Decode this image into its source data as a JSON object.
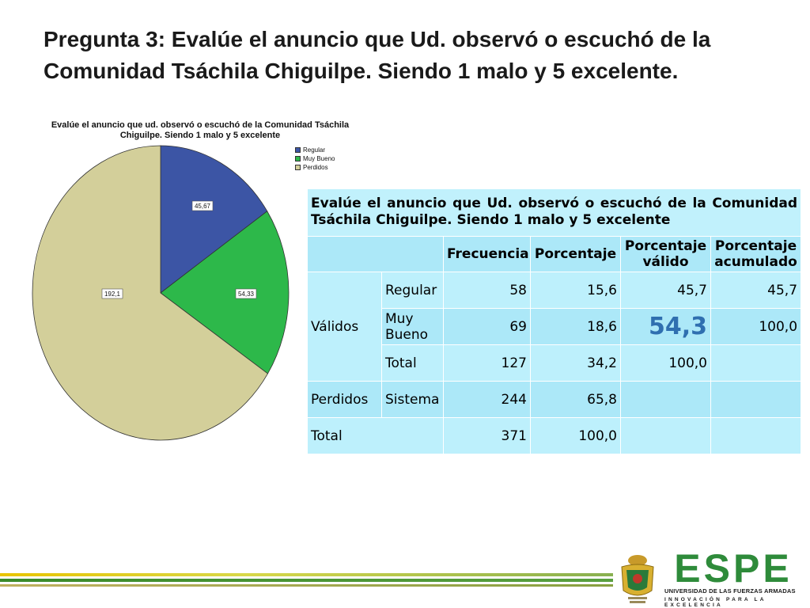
{
  "slide": {
    "title": "Pregunta 3: Evalúe el anuncio que Ud. observó o escuchó de la Comunidad Tsáchila Chiguilpe. Siendo 1 malo y 5 excelente."
  },
  "chart_data": {
    "type": "pie",
    "title_line1": "Evalúe el anuncio que ud. observó o escuchó de la Comunidad Tsáchila",
    "title_line2": "Chiguilpe. Siendo 1 malo y 5 excelente",
    "categories": [
      "Regular",
      "Muy Bueno",
      "Perdidos"
    ],
    "values": [
      45.67,
      54.33,
      192.1
    ],
    "labels": [
      "45,67",
      "54,33",
      "192,1"
    ],
    "colors": [
      "#3c55a5",
      "#2db84a",
      "#d3cf9a"
    ],
    "legend_position": "top-right"
  },
  "table": {
    "caption": "Evalúe el anuncio que Ud. observó o escuchó de la Comunidad Tsáchila Chiguilpe. Siendo 1 malo y 5 excelente",
    "headers": {
      "frecuencia": "Frecuencia",
      "porcentaje": "Porcentaje",
      "porcentaje_valido": "Porcentaje válido",
      "porcentaje_acumulado": "Porcentaje acumulado"
    },
    "groups": {
      "validos": "Válidos",
      "perdidos": "Perdidos",
      "total": "Total"
    },
    "rows": {
      "regular": {
        "label": "Regular",
        "frecuencia": "58",
        "porcentaje": "15,6",
        "valido": "45,7",
        "acumulado": "45,7"
      },
      "muy_bueno": {
        "label": "Muy Bueno",
        "frecuencia": "69",
        "porcentaje": "18,6",
        "valido": "54,3",
        "acumulado": "100,0"
      },
      "total_validos": {
        "label": "Total",
        "frecuencia": "127",
        "porcentaje": "34,2",
        "valido": "100,0",
        "acumulado": ""
      },
      "sistema": {
        "label": "Sistema",
        "frecuencia": "244",
        "porcentaje": "65,8",
        "valido": "",
        "acumulado": ""
      },
      "total": {
        "frecuencia": "371",
        "porcentaje": "100,0",
        "valido": "",
        "acumulado": ""
      }
    }
  },
  "footer": {
    "logo_word": "ESPE",
    "logo_line1": "UNIVERSIDAD DE LAS FUERZAS ARMADAS",
    "logo_line2": "INNOVACIÓN PARA LA EXCELENCIA"
  }
}
